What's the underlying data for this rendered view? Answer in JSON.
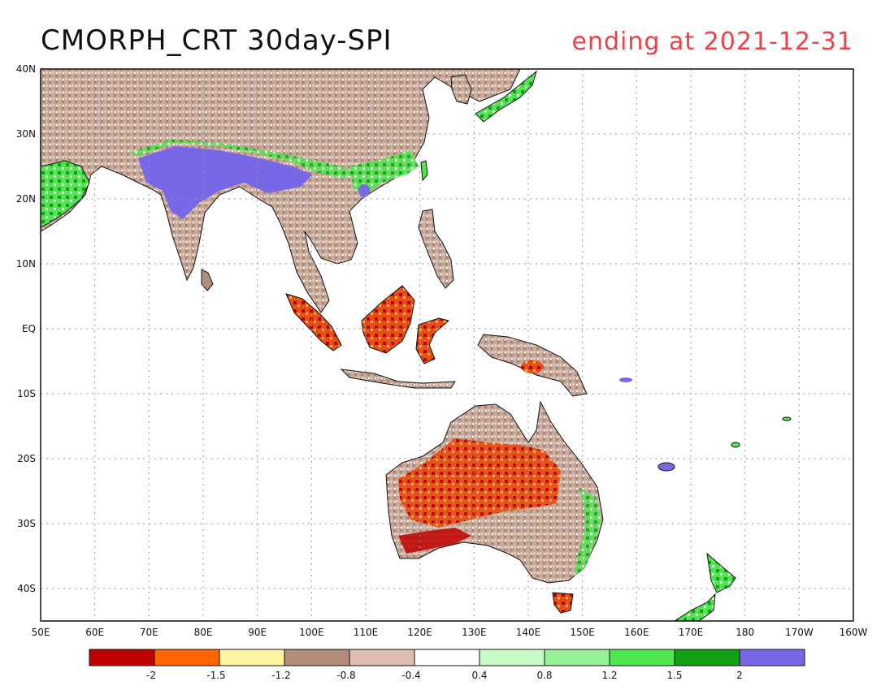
{
  "title": "CMORPH_CRT 30day-SPI",
  "subtitle": "ending at 2021-12-31",
  "lat_labels": [
    "40N",
    "30N",
    "20N",
    "10N",
    "EQ",
    "10S",
    "20S",
    "30S",
    "40S"
  ],
  "lon_labels": [
    "50E",
    "60E",
    "70E",
    "80E",
    "90E",
    "100E",
    "110E",
    "120E",
    "130E",
    "140E",
    "150E",
    "160E",
    "170E",
    "180",
    "170W",
    "160W"
  ],
  "legend": {
    "colors": [
      "#c00000",
      "#ff6400",
      "#fff5a0",
      "#b48c7c",
      "#e0bcb0",
      "#ffffff",
      "#c8fac8",
      "#96f096",
      "#50e650",
      "#14a014",
      "#7868e6"
    ],
    "labels": [
      "-2",
      "-1.5",
      "-1.2",
      "-0.8",
      "-0.4",
      "0.4",
      "0.8",
      "1.2",
      "1.5",
      "2"
    ]
  },
  "colors": {
    "land_base": "#c9a99a",
    "ocean": "#ffffff",
    "coast": "#111111",
    "grid": "#999999"
  }
}
